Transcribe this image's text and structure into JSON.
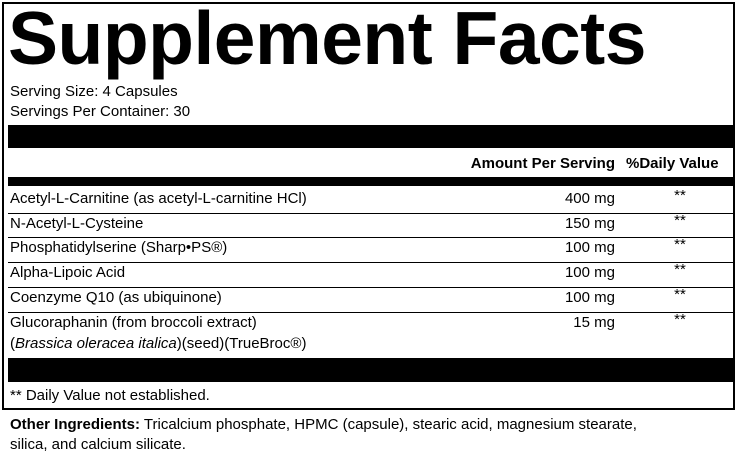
{
  "header": {
    "title": "Supplement Facts",
    "serving_size": "Serving Size: 4 Capsules",
    "servings_per_container": "Servings Per Container: 30"
  },
  "table": {
    "columns": [
      "Amount Per Serving",
      "%Daily Value"
    ],
    "rows": [
      {
        "name": "Acetyl-L-Carnitine (as acetyl-L-carnitine HCl)",
        "amount": "400 mg",
        "dv": "**"
      },
      {
        "name": "N-Acetyl-L-Cysteine",
        "amount": "150 mg",
        "dv": "**"
      },
      {
        "name": "Phosphatidylserine (Sharp•PS®)",
        "amount": "100 mg",
        "dv": "**"
      },
      {
        "name": "Alpha-Lipoic Acid",
        "amount": "100 mg",
        "dv": "**"
      },
      {
        "name": "Coenzyme Q10 (as ubiquinone)",
        "amount": "100 mg",
        "dv": "**"
      },
      {
        "name": "Glucoraphanin (from broccoli extract)",
        "detail_open": "(",
        "detail_italic": "Brassica oleracea italica",
        "detail_rest": ")(seed)(TrueBroc®)",
        "amount": "15 mg",
        "dv": "**"
      }
    ]
  },
  "footnote": "** Daily Value not established.",
  "other_ingredients": {
    "label": "Other Ingredients:",
    "text": "Tricalcium phosphate, HPMC (capsule), stearic acid, magnesium stearate,",
    "text_line2": "silica, and calcium silicate."
  }
}
